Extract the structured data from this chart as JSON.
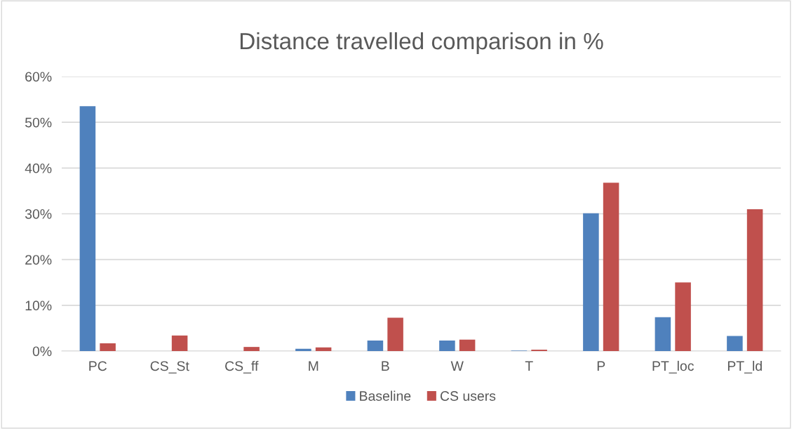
{
  "chart_data": {
    "type": "bar",
    "title": "Distance travelled comparison in %",
    "categories": [
      "PC",
      "CS_St",
      "CS_ff",
      "M",
      "B",
      "W",
      "T",
      "P",
      "PT_loc",
      "PT_ld"
    ],
    "series": [
      {
        "name": "Baseline",
        "color": "#4f81bd",
        "values": [
          53.5,
          0,
          0,
          0.5,
          2.3,
          2.3,
          0.1,
          30.1,
          7.4,
          3.3
        ]
      },
      {
        "name": "CS users",
        "color": "#c0504d",
        "values": [
          1.7,
          3.4,
          0.9,
          0.8,
          7.3,
          2.5,
          0.3,
          36.8,
          15.0,
          31.0
        ]
      }
    ],
    "ylim": [
      0,
      60
    ],
    "yticks": [
      {
        "value": 0,
        "label": "0%"
      },
      {
        "value": 10,
        "label": "10%"
      },
      {
        "value": 20,
        "label": "20%"
      },
      {
        "value": 30,
        "label": "30%"
      },
      {
        "value": 40,
        "label": "40%"
      },
      {
        "value": 50,
        "label": "50%"
      },
      {
        "value": 60,
        "label": "60%"
      }
    ],
    "grid": "y",
    "legend": "bottom"
  }
}
